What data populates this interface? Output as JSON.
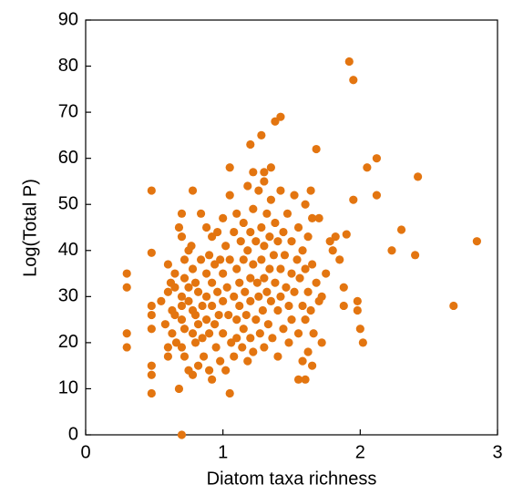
{
  "chart_data": {
    "type": "scatter",
    "xlabel": "Diatom taxa richness",
    "ylabel": "Log(Total P)",
    "color": "#e37510",
    "xlim": [
      0,
      3
    ],
    "ylim": [
      0,
      90
    ],
    "xticks": [
      0,
      1,
      2,
      3
    ],
    "yticks": [
      0,
      10,
      20,
      30,
      40,
      50,
      60,
      70,
      80,
      90
    ],
    "x": [
      0.3,
      0.3,
      0.3,
      0.3,
      0.48,
      0.48,
      0.48,
      0.48,
      0.48,
      0.48,
      0.48,
      0.48,
      0.7,
      0.68,
      1.05,
      1.92,
      1.95,
      2.85,
      2.68,
      2.42,
      2.4,
      2.3,
      2.23,
      2.12,
      2.12,
      2.05,
      2.02,
      2.0,
      1.98,
      1.98,
      1.95,
      1.9,
      1.88,
      1.88,
      1.85,
      1.82,
      1.8,
      1.78,
      1.75,
      1.72,
      1.72,
      1.68,
      1.65,
      1.65,
      1.62,
      1.6,
      1.58,
      1.55,
      1.42,
      1.38,
      1.28,
      1.2,
      1.35,
      1.05,
      0.78,
      1.22,
      1.3,
      0.55,
      0.58,
      0.6,
      0.6,
      0.6,
      0.6,
      0.62,
      0.63,
      0.63,
      0.65,
      0.65,
      0.65,
      0.66,
      0.68,
      0.7,
      0.7,
      0.7,
      0.7,
      0.7,
      0.7,
      0.72,
      0.72,
      0.72,
      0.72,
      0.75,
      0.75,
      0.75,
      0.75,
      0.77,
      0.78,
      0.78,
      0.78,
      0.78,
      0.8,
      0.8,
      0.8,
      0.82,
      0.82,
      0.82,
      0.84,
      0.84,
      0.85,
      0.85,
      0.86,
      0.88,
      0.88,
      0.88,
      0.88,
      0.9,
      0.9,
      0.9,
      0.92,
      0.92,
      0.92,
      0.92,
      0.94,
      0.94,
      0.95,
      0.96,
      0.96,
      0.97,
      0.98,
      0.98,
      1.0,
      1.0,
      1.0,
      1.0,
      1.02,
      1.02,
      1.03,
      1.04,
      1.05,
      1.05,
      1.06,
      1.08,
      1.08,
      1.08,
      1.1,
      1.1,
      1.1,
      1.1,
      1.12,
      1.12,
      1.13,
      1.14,
      1.15,
      1.15,
      1.15,
      1.16,
      1.17,
      1.18,
      1.18,
      1.18,
      1.2,
      1.2,
      1.2,
      1.2,
      1.22,
      1.22,
      1.22,
      1.24,
      1.24,
      1.25,
      1.26,
      1.26,
      1.27,
      1.28,
      1.28,
      1.29,
      1.3,
      1.3,
      1.3,
      1.3,
      1.32,
      1.32,
      1.33,
      1.34,
      1.34,
      1.35,
      1.35,
      1.36,
      1.37,
      1.38,
      1.38,
      1.4,
      1.4,
      1.4,
      1.42,
      1.42,
      1.42,
      1.44,
      1.44,
      1.45,
      1.46,
      1.47,
      1.48,
      1.48,
      1.5,
      1.5,
      1.5,
      1.52,
      1.52,
      1.54,
      1.55,
      1.55,
      1.56,
      1.58,
      1.58,
      1.6,
      1.6,
      1.6,
      1.62,
      1.62,
      1.64,
      1.64,
      1.65,
      1.66,
      1.68,
      1.7,
      1.7
    ],
    "values": [
      35,
      32,
      22,
      19,
      53,
      39.5,
      28,
      26,
      23,
      15,
      13,
      9,
      0,
      10,
      9,
      81,
      77,
      42,
      28,
      56,
      39,
      44.5,
      40,
      60,
      52,
      58,
      20,
      23,
      29,
      27,
      51,
      43.5,
      28,
      32,
      38,
      43,
      40,
      42,
      35,
      30,
      20,
      62,
      47,
      15,
      18,
      12,
      16,
      12,
      69,
      68,
      65,
      63,
      58,
      58,
      53,
      57,
      57,
      29,
      24,
      37,
      31,
      19,
      17,
      33,
      27,
      22,
      35,
      32,
      26,
      20,
      45,
      48,
      43,
      30,
      28,
      25,
      19,
      38,
      34,
      23,
      17,
      40,
      32,
      29,
      14,
      41,
      36,
      27,
      22,
      13,
      33,
      26,
      20,
      31,
      24,
      15,
      48,
      38,
      28,
      21,
      17,
      45,
      35,
      30,
      25,
      39,
      22,
      14,
      43,
      33,
      28,
      12,
      37,
      24,
      19,
      44,
      31,
      26,
      38,
      16,
      47,
      35,
      29,
      22,
      41,
      14,
      32,
      26,
      52,
      38,
      20,
      44,
      30,
      17,
      48,
      36,
      25,
      21,
      33,
      28,
      42,
      19,
      46,
      38,
      23,
      31,
      26,
      54,
      40,
      16,
      44,
      34,
      29,
      21,
      49,
      37,
      18,
      42,
      25,
      33,
      53,
      30,
      22,
      45,
      38,
      27,
      55,
      41,
      34,
      19,
      48,
      31,
      24,
      43,
      36,
      51,
      29,
      21,
      39,
      46,
      33,
      42,
      27,
      17,
      53,
      36,
      30,
      44,
      23,
      39,
      32,
      48,
      28,
      20,
      42,
      35,
      25,
      52,
      31,
      38,
      45,
      22,
      34,
      40,
      28,
      50,
      36,
      25,
      43,
      31,
      53,
      27,
      37,
      22,
      33,
      47,
      29
    ]
  }
}
